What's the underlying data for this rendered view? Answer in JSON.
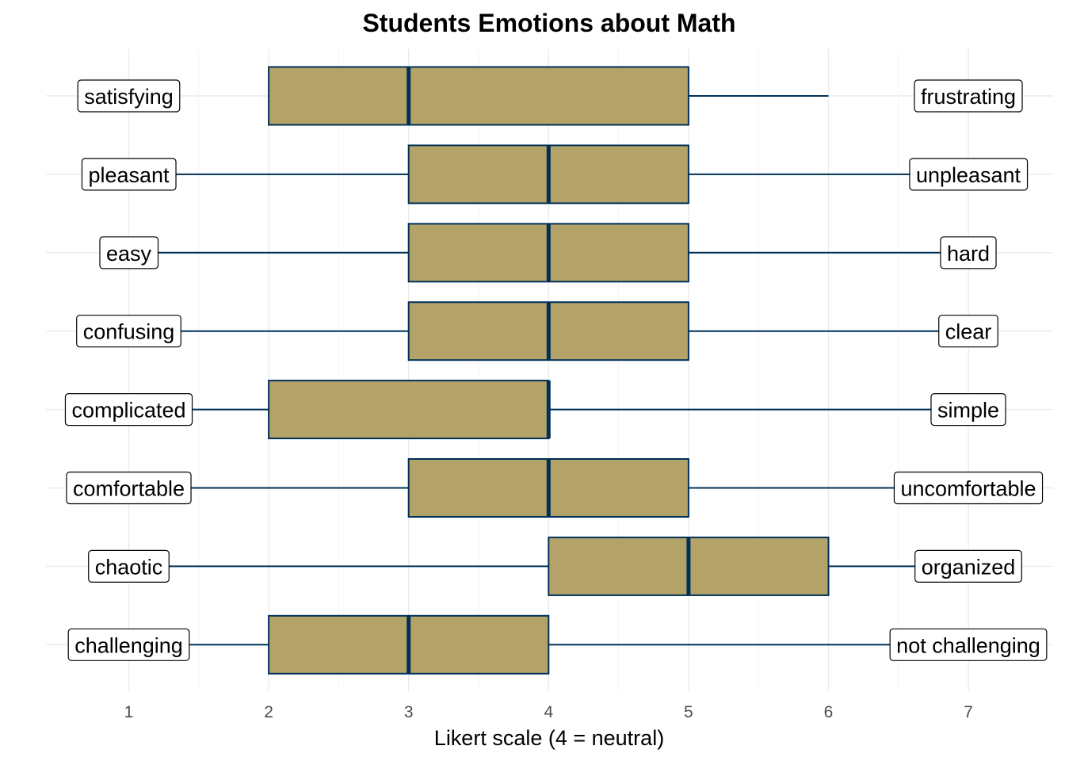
{
  "chart_data": {
    "type": "boxplot",
    "title": "Students Emotions about Math",
    "xlabel": "Likert scale (4 = neutral)",
    "ylabel": "",
    "xlim": [
      0.4,
      7.6
    ],
    "xticks": [
      1,
      2,
      3,
      4,
      5,
      6,
      7
    ],
    "xtick_labels": [
      "1",
      "2",
      "3",
      "4",
      "5",
      "6",
      "7"
    ],
    "grid": true,
    "colors": {
      "box_fill": "#b3a369",
      "box_stroke": "#003057",
      "grid": "#ebebeb"
    },
    "items": [
      {
        "left": "satisfying",
        "right": "frustrating",
        "min": 2,
        "q1": 2,
        "median": 3,
        "q3": 5,
        "max": 6
      },
      {
        "left": "pleasant",
        "right": "unpleasant",
        "min": 1,
        "q1": 3,
        "median": 4,
        "q3": 5,
        "max": 7
      },
      {
        "left": "easy",
        "right": "hard",
        "min": 1,
        "q1": 3,
        "median": 4,
        "q3": 5,
        "max": 7
      },
      {
        "left": "confusing",
        "right": "clear",
        "min": 1,
        "q1": 3,
        "median": 4,
        "q3": 5,
        "max": 7
      },
      {
        "left": "complicated",
        "right": "simple",
        "min": 1,
        "q1": 2,
        "median": 4,
        "q3": 4,
        "max": 7
      },
      {
        "left": "comfortable",
        "right": "uncomfortable",
        "min": 1,
        "q1": 3,
        "median": 4,
        "q3": 5,
        "max": 7
      },
      {
        "left": "chaotic",
        "right": "organized",
        "min": 1,
        "q1": 4,
        "median": 5,
        "q3": 6,
        "max": 7
      },
      {
        "left": "challenging",
        "right": "not challenging",
        "min": 1,
        "q1": 2,
        "median": 3,
        "q3": 4,
        "max": 7
      }
    ]
  }
}
